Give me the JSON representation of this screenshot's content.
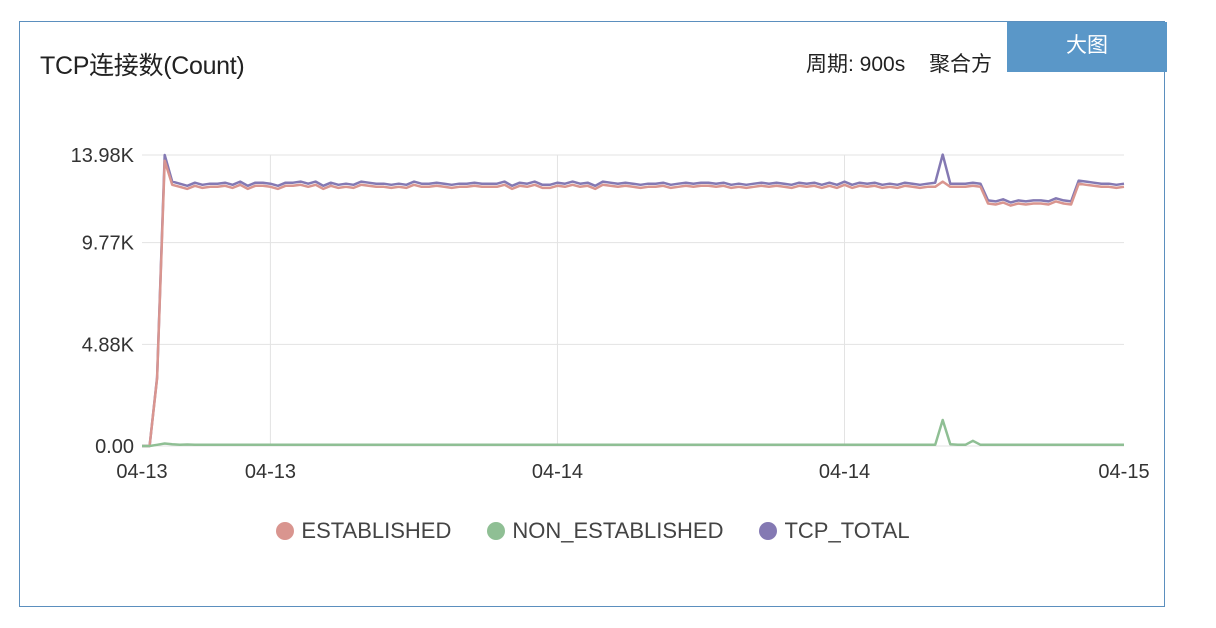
{
  "panel": {
    "title": "TCP连接数(Count)",
    "period": "周期: 900s",
    "aggregation": "聚合方",
    "big_button": "大图"
  },
  "colors": {
    "established": "#d9958f",
    "non_established": "#8fbf94",
    "tcp_total": "#8479b3",
    "grid": "#e3e3e3",
    "axis_text": "#333333",
    "accent": "#5a97c8"
  },
  "chart_data": {
    "type": "line",
    "title": "TCP连接数(Count)",
    "ylim": [
      0,
      13980
    ],
    "yticks": [
      {
        "value": 0,
        "label": "0.00"
      },
      {
        "value": 4880,
        "label": "4.88K"
      },
      {
        "value": 9770,
        "label": "9.77K"
      },
      {
        "value": 13980,
        "label": "13.98K"
      }
    ],
    "x_count": 131,
    "xticks": [
      {
        "index": 0,
        "label": "04-13"
      },
      {
        "index": 17,
        "label": "04-13"
      },
      {
        "index": 55,
        "label": "04-14"
      },
      {
        "index": 93,
        "label": "04-14"
      },
      {
        "index": 130,
        "label": "04-15"
      }
    ],
    "legend": [
      "ESTABLISHED",
      "NON_ESTABLISHED",
      "TCP_TOTAL"
    ],
    "grid": true,
    "legend_position": "bottom",
    "series": [
      {
        "name": "TCP_TOTAL",
        "color_key": "tcp_total",
        "values": [
          0,
          0,
          3300,
          13980,
          12700,
          12600,
          12500,
          12650,
          12550,
          12600,
          12600,
          12650,
          12550,
          12700,
          12500,
          12650,
          12650,
          12600,
          12500,
          12650,
          12650,
          12700,
          12600,
          12700,
          12500,
          12650,
          12550,
          12600,
          12550,
          12700,
          12650,
          12600,
          12600,
          12550,
          12600,
          12550,
          12700,
          12600,
          12600,
          12650,
          12600,
          12550,
          12600,
          12600,
          12650,
          12600,
          12600,
          12600,
          12700,
          12500,
          12650,
          12600,
          12700,
          12550,
          12550,
          12650,
          12600,
          12700,
          12600,
          12650,
          12500,
          12700,
          12650,
          12600,
          12650,
          12600,
          12550,
          12600,
          12600,
          12650,
          12550,
          12600,
          12650,
          12600,
          12650,
          12650,
          12600,
          12650,
          12550,
          12600,
          12550,
          12600,
          12650,
          12600,
          12650,
          12600,
          12550,
          12650,
          12600,
          12650,
          12550,
          12650,
          12550,
          12700,
          12550,
          12650,
          12600,
          12650,
          12550,
          12600,
          12550,
          12650,
          12600,
          12550,
          12600,
          12650,
          14000,
          12600,
          12600,
          12600,
          12650,
          12600,
          11800,
          11750,
          11850,
          11700,
          11800,
          11750,
          11800,
          11800,
          11750,
          11900,
          11800,
          11750,
          12750,
          12700,
          12650,
          12600,
          12600,
          12550,
          12600
        ]
      },
      {
        "name": "ESTABLISHED",
        "color_key": "established",
        "values": [
          0,
          0,
          3250,
          13700,
          12550,
          12450,
          12350,
          12500,
          12400,
          12450,
          12450,
          12500,
          12400,
          12550,
          12350,
          12500,
          12500,
          12450,
          12350,
          12500,
          12500,
          12550,
          12450,
          12550,
          12350,
          12500,
          12400,
          12450,
          12400,
          12550,
          12500,
          12450,
          12450,
          12400,
          12450,
          12400,
          12550,
          12450,
          12450,
          12500,
          12450,
          12400,
          12450,
          12450,
          12500,
          12450,
          12450,
          12450,
          12550,
          12350,
          12500,
          12450,
          12550,
          12400,
          12400,
          12500,
          12450,
          12550,
          12450,
          12500,
          12350,
          12550,
          12500,
          12450,
          12500,
          12450,
          12400,
          12450,
          12450,
          12500,
          12400,
          12450,
          12500,
          12450,
          12500,
          12500,
          12450,
          12500,
          12400,
          12450,
          12400,
          12450,
          12500,
          12450,
          12500,
          12450,
          12400,
          12500,
          12450,
          12500,
          12400,
          12500,
          12400,
          12550,
          12400,
          12500,
          12450,
          12500,
          12400,
          12450,
          12400,
          12500,
          12450,
          12400,
          12450,
          12450,
          12700,
          12450,
          12450,
          12450,
          12500,
          12450,
          11650,
          11600,
          11700,
          11550,
          11650,
          11600,
          11650,
          11650,
          11600,
          11750,
          11650,
          11600,
          12600,
          12550,
          12500,
          12450,
          12450,
          12400,
          12450
        ]
      },
      {
        "name": "NON_ESTABLISHED",
        "color_key": "non_established",
        "values": [
          0,
          0,
          60,
          120,
          80,
          60,
          70,
          60,
          60,
          60,
          60,
          60,
          60,
          60,
          60,
          60,
          60,
          60,
          60,
          60,
          60,
          60,
          60,
          60,
          60,
          60,
          60,
          60,
          60,
          60,
          60,
          60,
          60,
          60,
          60,
          60,
          60,
          60,
          60,
          60,
          60,
          60,
          60,
          60,
          60,
          60,
          60,
          60,
          60,
          60,
          60,
          60,
          60,
          60,
          60,
          60,
          60,
          60,
          60,
          60,
          60,
          60,
          60,
          60,
          60,
          60,
          60,
          60,
          60,
          60,
          60,
          60,
          60,
          60,
          60,
          60,
          60,
          60,
          60,
          60,
          60,
          60,
          60,
          60,
          60,
          60,
          60,
          60,
          60,
          60,
          60,
          60,
          60,
          60,
          60,
          60,
          60,
          60,
          60,
          60,
          60,
          60,
          60,
          60,
          60,
          60,
          1250,
          80,
          60,
          60,
          250,
          60,
          60,
          60,
          60,
          60,
          60,
          60,
          60,
          60,
          60,
          60,
          60,
          60,
          60,
          60,
          60,
          60,
          60,
          60,
          60
        ]
      }
    ]
  }
}
